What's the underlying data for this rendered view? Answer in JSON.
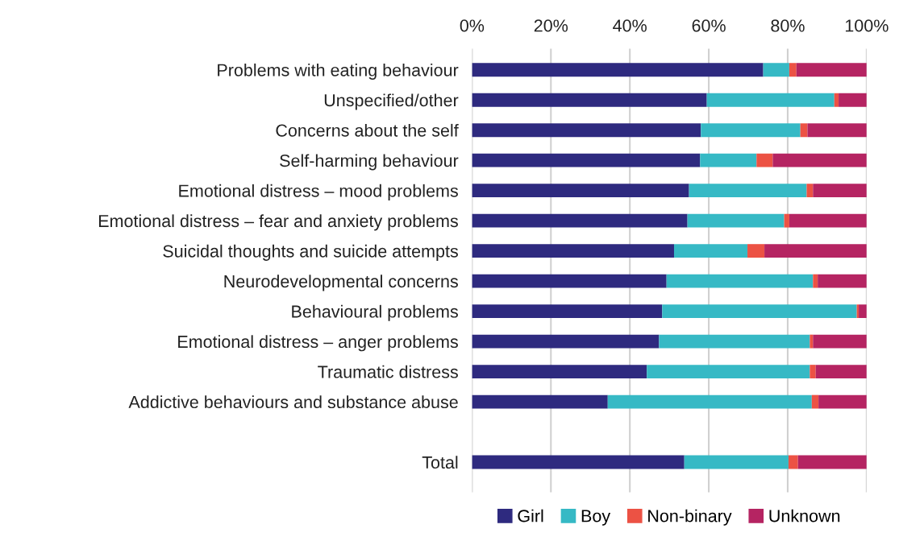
{
  "chart_data": {
    "type": "bar",
    "orientation": "horizontal",
    "stacked": true,
    "categories": [
      "Problems with eating behaviour",
      "Unspecified/other",
      "Concerns about the self",
      "Self-harming behaviour",
      "Emotional distress – mood problems",
      "Emotional distress – fear and anxiety problems",
      "Suicidal thoughts and suicide attempts",
      "Neurodevelopmental concerns",
      "Behavioural problems",
      "Emotional distress – anger problems",
      "Traumatic distress",
      "Addictive behaviours and substance abuse",
      null,
      "Total"
    ],
    "series": [
      {
        "name": "Girl",
        "color": "#2e2a7f",
        "values": [
          73.8,
          59.5,
          58.0,
          57.8,
          55.0,
          54.6,
          51.2,
          49.3,
          48.2,
          47.4,
          44.3,
          34.4,
          null,
          53.8
        ]
      },
      {
        "name": "Boy",
        "color": "#36b9c5",
        "values": [
          6.6,
          32.3,
          25.2,
          14.3,
          29.8,
          24.5,
          18.6,
          37.1,
          49.3,
          38.2,
          41.3,
          51.7,
          null,
          26.4
        ]
      },
      {
        "name": "Non-binary",
        "color": "#ec5244",
        "values": [
          1.8,
          1.1,
          1.8,
          4.1,
          1.6,
          1.3,
          4.3,
          1.2,
          0.5,
          0.8,
          1.5,
          1.7,
          null,
          2.4
        ]
      },
      {
        "name": "Unknown",
        "color": "#b52462",
        "values": [
          17.8,
          7.1,
          15.0,
          23.8,
          13.6,
          19.6,
          25.9,
          12.4,
          2.0,
          13.6,
          12.9,
          12.2,
          null,
          17.4
        ]
      }
    ],
    "xlim": [
      0,
      100
    ],
    "xticks": [
      {
        "value": 0,
        "label": "0%"
      },
      {
        "value": 20,
        "label": "20%"
      },
      {
        "value": 40,
        "label": "40%"
      },
      {
        "value": 60,
        "label": "60%"
      },
      {
        "value": 80,
        "label": "80%"
      },
      {
        "value": 100,
        "label": "100%"
      }
    ],
    "grid": "x",
    "legend": "bottom"
  }
}
